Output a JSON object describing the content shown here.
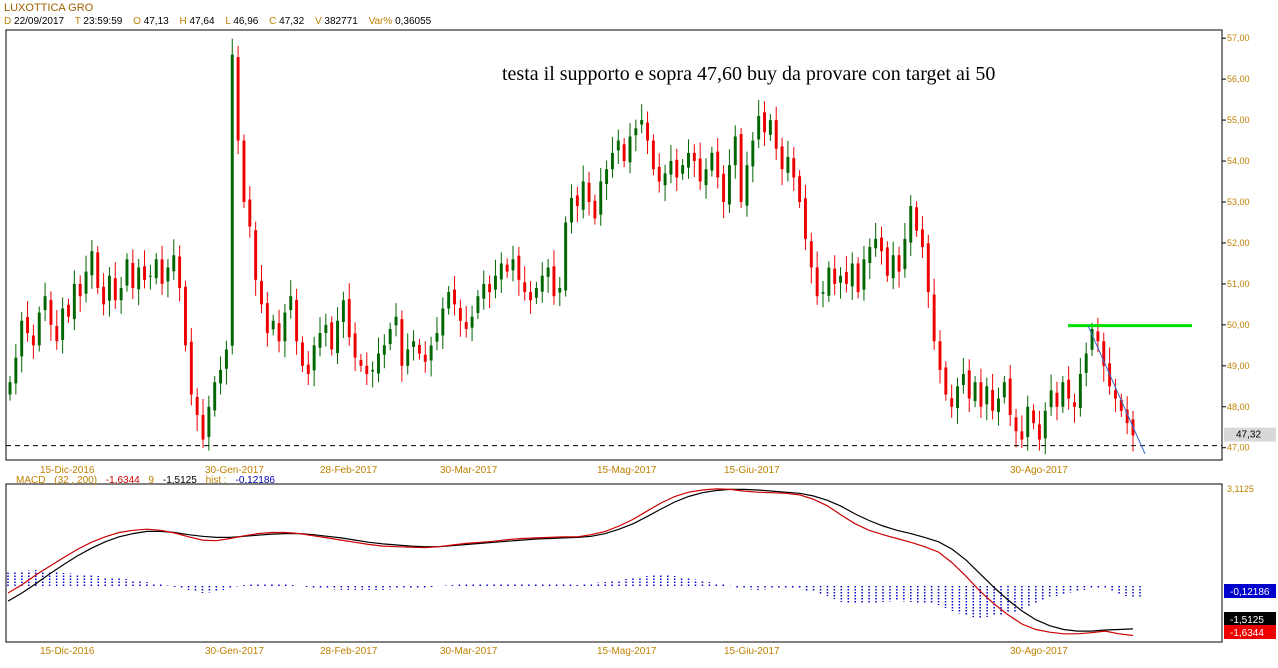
{
  "header": {
    "title": "LUXOTTICA GRO",
    "date_label": "D",
    "date": "22/09/2017",
    "time_label": "T",
    "time": "23:59:59",
    "open_label": "O",
    "open": "47,13",
    "high_label": "H",
    "high": "47,64",
    "low_label": "L",
    "low": "46,96",
    "close_label": "C",
    "close": "47,32",
    "volume_label": "V",
    "volume": "382771",
    "var_label": "Var%",
    "var": "0,36055"
  },
  "macd_header": {
    "name": "MACD",
    "params": "(32 , 200)",
    "macd_value": "-1,6344",
    "signal_label": "9",
    "signal_value": "-1,5125",
    "hist_label": "hist :",
    "hist_value": "-0,12186"
  },
  "annotation": "testa il supporto e sopra 47,60 buy da provare con target ai 50",
  "colors": {
    "up": "#006600",
    "down": "#ee0000",
    "resistance": "#00dd00",
    "trendline": "#3366cc",
    "macd": "#cc0000",
    "signal": "#000000",
    "hist": "#0000cc",
    "axis_text": "#c08000"
  },
  "chart_data": {
    "type": "candlestick",
    "price_axis": {
      "ylim": [
        46.7,
        57.2
      ],
      "ticks": [
        "47,00",
        "48,00",
        "49,00",
        "50,00",
        "51,00",
        "52,00",
        "53,00",
        "54,00",
        "55,00",
        "56,00",
        "57,00"
      ]
    },
    "x_ticks": [
      "15-Dic-2016",
      "30-Gen-2017",
      "28-Feb-2017",
      "30-Mar-2017",
      "15-Mag-2017",
      "15-Giu-2017",
      "30-Ago-2017"
    ],
    "last_price_tag": "47,32",
    "support_level": 47.05,
    "resistance_level": 49.98,
    "trendline": {
      "from": [
        49.98
      ],
      "to": [
        46.85
      ]
    },
    "series": [
      {
        "name": "price",
        "values": [
          48.6,
          49.2,
          50.1,
          49.8,
          49.5,
          50.3,
          50.7,
          50.0,
          49.6,
          50.4,
          50.2,
          51.0,
          50.7,
          51.3,
          51.8,
          50.9,
          50.5,
          51.2,
          50.6,
          50.9,
          51.6,
          50.9,
          51.4,
          51.1,
          51.2,
          51.6,
          51.0,
          51.4,
          51.7,
          50.9,
          49.5,
          48.3,
          47.8,
          47.2,
          48.0,
          48.6,
          48.9,
          49.4,
          56.6,
          54.5,
          53.0,
          52.4,
          51.1,
          50.5,
          49.8,
          50.1,
          49.6,
          50.3,
          50.7,
          49.6,
          49.0,
          48.8,
          49.5,
          49.8,
          50.0,
          49.4,
          50.1,
          50.6,
          49.7,
          49.2,
          49.0,
          48.8,
          48.9,
          49.3,
          49.5,
          49.9,
          50.2,
          49.0,
          49.4,
          49.6,
          49.3,
          49.1,
          49.5,
          49.8,
          50.4,
          50.8,
          50.5,
          50.1,
          49.9,
          50.2,
          50.7,
          51.0,
          50.8,
          51.2,
          51.5,
          51.3,
          51.6,
          51.1,
          50.8,
          50.6,
          50.9,
          51.2,
          51.4,
          50.7,
          50.9,
          52.5,
          53.1,
          52.9,
          53.5,
          53.0,
          52.6,
          53.5,
          53.8,
          54.2,
          54.5,
          54.0,
          54.6,
          54.8,
          55.0,
          54.5,
          53.8,
          53.5,
          53.7,
          54.0,
          53.6,
          53.9,
          54.2,
          54.0,
          53.5,
          53.8,
          54.2,
          53.6,
          53.0,
          53.9,
          54.6,
          53.0,
          53.9,
          54.5,
          55.1,
          54.7,
          55.0,
          54.3,
          53.8,
          54.1,
          53.6,
          53.0,
          52.1,
          51.4,
          50.7,
          50.8,
          51.4,
          51.0,
          51.2,
          51.0,
          51.5,
          50.8,
          51.6,
          51.9,
          52.1,
          51.8,
          51.2,
          51.7,
          51.3,
          52.1,
          52.9,
          52.3,
          51.9,
          50.8,
          49.6,
          48.9,
          48.3,
          48.0,
          48.5,
          48.8,
          48.2,
          48.6,
          48.0,
          48.5,
          47.9,
          48.2,
          48.6,
          47.8,
          47.4,
          47.2,
          48.0,
          47.6,
          47.2,
          47.9,
          48.4,
          48.0,
          48.6,
          48.2,
          48.0,
          48.8,
          49.3,
          49.9,
          49.6,
          49.0,
          48.5,
          48.2,
          47.9,
          47.6,
          47.3
        ]
      },
      {
        "name": "MACD",
        "values": [
          -0.85,
          -0.7,
          -0.52,
          -0.36,
          -0.2,
          -0.05,
          0.08,
          0.18,
          0.26,
          0.3,
          0.32,
          0.3,
          0.25,
          0.18,
          0.12,
          0.11,
          0.15,
          0.2,
          0.24,
          0.26,
          0.26,
          0.24,
          0.2,
          0.16,
          0.12,
          0.08,
          0.04,
          0.01,
          0.0,
          -0.01,
          -0.02,
          0.0,
          0.03,
          0.06,
          0.08,
          0.1,
          0.13,
          0.15,
          0.16,
          0.17,
          0.18,
          0.18,
          0.22,
          0.28,
          0.38,
          0.5,
          0.65,
          0.8,
          0.92,
          1.0,
          1.04,
          1.06,
          1.05,
          1.02,
          1.0,
          0.99,
          0.98,
          0.95,
          0.87,
          0.75,
          0.58,
          0.42,
          0.3,
          0.22,
          0.15,
          0.08,
          0.0,
          -0.1,
          -0.3,
          -0.55,
          -0.82,
          -1.05,
          -1.25,
          -1.42,
          -1.52,
          -1.57,
          -1.6,
          -1.6,
          -1.58,
          -1.55,
          -1.6,
          -1.63
        ]
      },
      {
        "name": "9",
        "values": [
          -1.0,
          -0.85,
          -0.68,
          -0.5,
          -0.33,
          -0.17,
          -0.03,
          0.09,
          0.18,
          0.24,
          0.28,
          0.28,
          0.26,
          0.22,
          0.19,
          0.17,
          0.17,
          0.19,
          0.21,
          0.23,
          0.24,
          0.24,
          0.22,
          0.19,
          0.16,
          0.12,
          0.08,
          0.05,
          0.03,
          0.01,
          0.0,
          0.0,
          0.02,
          0.04,
          0.06,
          0.08,
          0.1,
          0.12,
          0.14,
          0.15,
          0.16,
          0.17,
          0.19,
          0.24,
          0.32,
          0.42,
          0.55,
          0.69,
          0.82,
          0.92,
          0.99,
          1.03,
          1.05,
          1.05,
          1.04,
          1.02,
          1.0,
          0.98,
          0.93,
          0.85,
          0.74,
          0.6,
          0.48,
          0.38,
          0.3,
          0.24,
          0.17,
          0.09,
          -0.05,
          -0.25,
          -0.5,
          -0.75,
          -0.98,
          -1.18,
          -1.34,
          -1.45,
          -1.52,
          -1.55,
          -1.55,
          -1.53,
          -1.52,
          -1.51
        ]
      },
      {
        "name": "hist",
        "values": [
          0.15,
          0.15,
          0.16,
          0.14,
          0.13,
          0.12,
          0.11,
          0.09,
          0.08,
          0.06,
          0.04,
          0.02,
          -0.01,
          -0.04,
          -0.07,
          -0.06,
          -0.02,
          0.01,
          0.03,
          0.03,
          0.02,
          0.0,
          -0.02,
          -0.03,
          -0.04,
          -0.04,
          -0.04,
          -0.04,
          -0.03,
          -0.02,
          -0.02,
          0.0,
          0.01,
          0.02,
          0.02,
          0.02,
          0.03,
          0.03,
          0.02,
          0.02,
          0.02,
          0.01,
          0.03,
          0.04,
          0.06,
          0.08,
          0.1,
          0.11,
          0.1,
          0.08,
          0.05,
          0.03,
          0.0,
          -0.03,
          -0.04,
          -0.03,
          -0.02,
          -0.03,
          -0.06,
          -0.1,
          -0.16,
          -0.18,
          -0.18,
          -0.16,
          -0.15,
          -0.16,
          -0.17,
          -0.19,
          -0.25,
          -0.3,
          -0.32,
          -0.3,
          -0.27,
          -0.24,
          -0.18,
          -0.12,
          -0.08,
          -0.05,
          -0.03,
          -0.02,
          -0.08,
          -0.12
        ]
      }
    ],
    "macd_axis": {
      "ylim": [
        -1.75,
        1.15
      ],
      "top_tick": "3,1125"
    },
    "macd_tags": {
      "hist": "-0,12186",
      "signal": "-1,5125",
      "macd": "-1,6344"
    }
  }
}
